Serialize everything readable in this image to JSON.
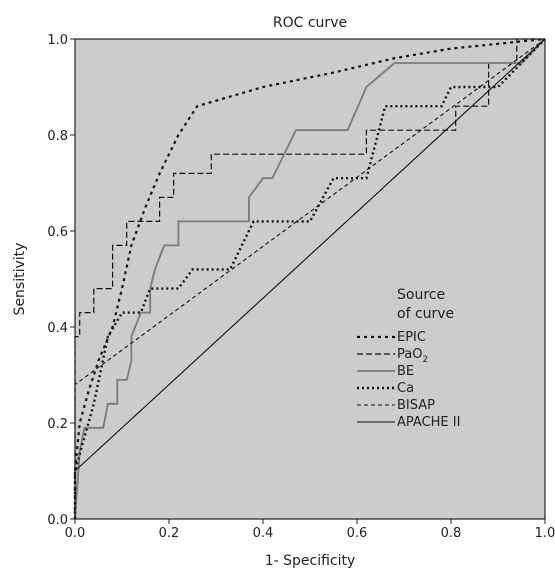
{
  "chart_data": {
    "type": "line",
    "title": "ROC curve",
    "xlabel": "1- Specificity",
    "ylabel": "Sensitivity",
    "xlim": [
      0,
      1
    ],
    "ylim": [
      0,
      1
    ],
    "x_ticks": [
      "0.0",
      "0.2",
      "0.4",
      "0.6",
      "0.8",
      "1.0"
    ],
    "y_ticks": [
      "0.0",
      "0.2",
      "0.4",
      "0.6",
      "0.8",
      "1.0"
    ],
    "grid": false,
    "legend_position": "right-middle",
    "legend_title_lines": [
      "Source",
      "of curve"
    ],
    "series": [
      {
        "name": "EPIC",
        "color": "#111111",
        "dash": "3,4",
        "width": 2.2,
        "points": [
          [
            0,
            0
          ],
          [
            0,
            0.1
          ],
          [
            0.01,
            0.2
          ],
          [
            0.03,
            0.27
          ],
          [
            0.05,
            0.33
          ],
          [
            0.08,
            0.4
          ],
          [
            0.1,
            0.48
          ],
          [
            0.12,
            0.57
          ],
          [
            0.15,
            0.65
          ],
          [
            0.18,
            0.72
          ],
          [
            0.22,
            0.8
          ],
          [
            0.26,
            0.86
          ],
          [
            0.4,
            0.9
          ],
          [
            0.55,
            0.93
          ],
          [
            0.68,
            0.96
          ],
          [
            0.8,
            0.98
          ],
          [
            1,
            1
          ]
        ]
      },
      {
        "name": "PaO",
        "name_subscript": "2",
        "color": "#111111",
        "dash": "6,3",
        "width": 1.2,
        "points": [
          [
            0,
            0
          ],
          [
            0,
            0.38
          ],
          [
            0.01,
            0.38
          ],
          [
            0.01,
            0.43
          ],
          [
            0.04,
            0.43
          ],
          [
            0.04,
            0.48
          ],
          [
            0.08,
            0.48
          ],
          [
            0.08,
            0.57
          ],
          [
            0.11,
            0.57
          ],
          [
            0.11,
            0.62
          ],
          [
            0.18,
            0.62
          ],
          [
            0.18,
            0.67
          ],
          [
            0.21,
            0.67
          ],
          [
            0.21,
            0.72
          ],
          [
            0.29,
            0.72
          ],
          [
            0.29,
            0.76
          ],
          [
            0.62,
            0.76
          ],
          [
            0.62,
            0.81
          ],
          [
            0.81,
            0.81
          ],
          [
            0.81,
            0.86
          ],
          [
            0.88,
            0.86
          ],
          [
            0.88,
            0.95
          ],
          [
            0.94,
            0.95
          ],
          [
            0.94,
            1
          ],
          [
            1,
            1
          ]
        ]
      },
      {
        "name": "BE",
        "color": "#7a7a7a",
        "dash": "",
        "width": 1.8,
        "points": [
          [
            0,
            0
          ],
          [
            0.01,
            0.14
          ],
          [
            0.02,
            0.19
          ],
          [
            0.06,
            0.19
          ],
          [
            0.07,
            0.24
          ],
          [
            0.09,
            0.24
          ],
          [
            0.09,
            0.29
          ],
          [
            0.11,
            0.29
          ],
          [
            0.12,
            0.33
          ],
          [
            0.12,
            0.38
          ],
          [
            0.14,
            0.43
          ],
          [
            0.16,
            0.43
          ],
          [
            0.16,
            0.48
          ],
          [
            0.17,
            0.52
          ],
          [
            0.19,
            0.57
          ],
          [
            0.22,
            0.57
          ],
          [
            0.22,
            0.62
          ],
          [
            0.37,
            0.62
          ],
          [
            0.37,
            0.67
          ],
          [
            0.4,
            0.71
          ],
          [
            0.42,
            0.71
          ],
          [
            0.47,
            0.81
          ],
          [
            0.58,
            0.81
          ],
          [
            0.62,
            0.9
          ],
          [
            0.68,
            0.95
          ],
          [
            0.95,
            0.95
          ],
          [
            1,
            1
          ]
        ]
      },
      {
        "name": "Ca",
        "color": "#111111",
        "dash": "2,3",
        "width": 2.4,
        "points": [
          [
            0,
            0
          ],
          [
            0,
            0.1
          ],
          [
            0.04,
            0.24
          ],
          [
            0.07,
            0.38
          ],
          [
            0.1,
            0.43
          ],
          [
            0.14,
            0.43
          ],
          [
            0.16,
            0.48
          ],
          [
            0.22,
            0.48
          ],
          [
            0.25,
            0.52
          ],
          [
            0.33,
            0.52
          ],
          [
            0.38,
            0.62
          ],
          [
            0.5,
            0.62
          ],
          [
            0.55,
            0.71
          ],
          [
            0.62,
            0.71
          ],
          [
            0.66,
            0.86
          ],
          [
            0.78,
            0.86
          ],
          [
            0.8,
            0.9
          ],
          [
            0.9,
            0.9
          ],
          [
            0.95,
            0.95
          ],
          [
            1,
            1
          ]
        ]
      },
      {
        "name": "BISAP",
        "color": "#111111",
        "dash": "4,3",
        "width": 1.1,
        "points": [
          [
            0,
            0
          ],
          [
            0,
            0.28
          ],
          [
            1,
            1
          ]
        ]
      },
      {
        "name": "APACHE II",
        "color": "#111111",
        "dash": "",
        "width": 1.1,
        "points": [
          [
            0,
            0
          ],
          [
            0,
            0.1
          ],
          [
            1,
            1
          ]
        ]
      }
    ]
  }
}
